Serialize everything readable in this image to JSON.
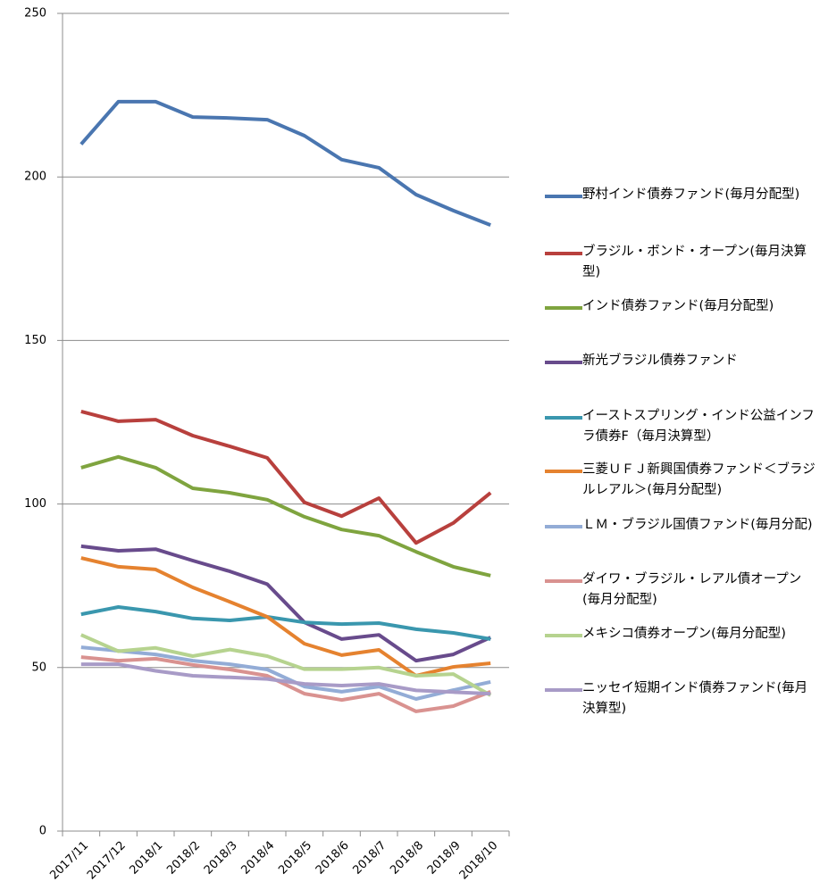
{
  "chart_data": {
    "type": "line",
    "categories": [
      "2017/11",
      "2017/12",
      "2018/1",
      "2018/2",
      "2018/3",
      "2018/4",
      "2018/5",
      "2018/6",
      "2018/7",
      "2018/8",
      "2018/9",
      "2018/10"
    ],
    "series": [
      {
        "name": "野村インド債券ファンド(毎月分配型)",
        "color": "#4a76b0",
        "values": [
          210,
          223,
          223,
          218.3,
          218,
          217.5,
          212.6,
          205.3,
          202.8,
          194.6,
          189.7,
          185.3
        ]
      },
      {
        "name": "ブラジル・ボンド・オープン(毎月決算型)",
        "color": "#b8403d",
        "values": [
          128.3,
          125.3,
          125.8,
          120.9,
          117.6,
          114.1,
          100.5,
          96.3,
          101.8,
          88.1,
          94.2,
          103.4
        ]
      },
      {
        "name": "インド債券ファンド(毎月分配型)",
        "color": "#7fa43f",
        "values": [
          111.1,
          114.4,
          111.1,
          104.8,
          103.4,
          101.3,
          96.1,
          92.2,
          90.3,
          85.4,
          80.8,
          78.1
        ]
      },
      {
        "name": "新光ブラジル債券ファンド",
        "color": "#684b8c",
        "values": [
          87.1,
          85.7,
          86.2,
          82.7,
          79.4,
          75.5,
          63.8,
          58.7,
          60.0,
          52.1,
          54.0,
          59.2
        ]
      },
      {
        "name": "イーストスプリング・インド公益インフラ債券F（毎月決算型）",
        "color": "#3a97ae",
        "values": [
          66.3,
          68.5,
          67.1,
          65.0,
          64.4,
          65.5,
          63.8,
          63.3,
          63.6,
          61.7,
          60.6,
          58.7
        ]
      },
      {
        "name": "三菱ＵＦＪ新興国債券ファンド＜ブラジルレアル＞(毎月分配型)",
        "color": "#e5822f",
        "values": [
          83.5,
          80.8,
          80.0,
          74.5,
          70.1,
          65.5,
          57.3,
          53.8,
          55.4,
          47.5,
          50.2,
          51.3
        ]
      },
      {
        "name": "ＬＭ・ブラジル国債ファンド(毎月分配)",
        "color": "#93acd6",
        "values": [
          56.2,
          55.1,
          54.0,
          52.1,
          51.0,
          49.4,
          44.2,
          42.6,
          44.2,
          40.4,
          43.1,
          45.6
        ]
      },
      {
        "name": "ダイワ・ブラジル・レアル債オープン(毎月分配型)",
        "color": "#d99290",
        "values": [
          53.2,
          52.1,
          52.7,
          50.8,
          49.4,
          47.5,
          42.0,
          40.1,
          42.0,
          36.6,
          38.2,
          42.6
        ]
      },
      {
        "name": "メキシコ債券オープン(毎月分配型)",
        "color": "#b6d38f",
        "values": [
          60,
          55,
          56,
          53.5,
          55.5,
          53.5,
          49.5,
          49.5,
          50,
          47.5,
          48,
          41.5
        ]
      },
      {
        "name": "ニッセイ短期インド債券ファンド(毎月決算型)",
        "color": "#a89bc7",
        "values": [
          51,
          51,
          49,
          47.5,
          47,
          46.5,
          45,
          44.5,
          45,
          43,
          42.5,
          42
        ]
      }
    ],
    "ylim": [
      0,
      250
    ],
    "yticks": [
      0,
      50,
      100,
      150,
      200,
      250
    ],
    "grid": true,
    "legend": "right"
  }
}
